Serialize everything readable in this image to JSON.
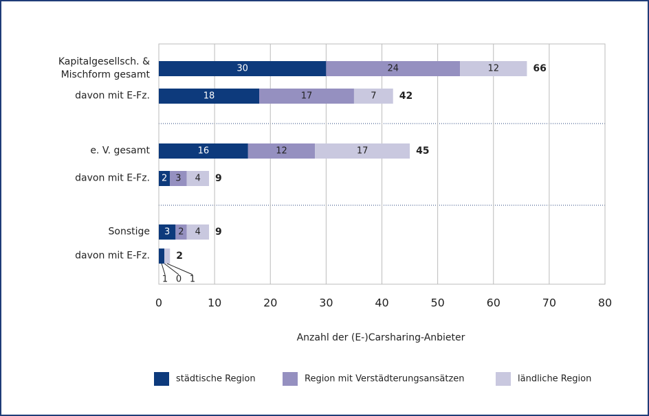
{
  "chart_data": {
    "type": "stacked-bar-horizontal",
    "categories": [
      "Kapitalgesellsch. &\nMischform gesamt",
      "davon mit E-Fz.",
      "e. V. gesamt",
      "davon mit E-Fz.",
      "Sonstige",
      "davon mit E-Fz."
    ],
    "series": [
      {
        "name": "städtische Region",
        "color": "#0d3a7c",
        "values": [
          30,
          18,
          16,
          2,
          3,
          1
        ]
      },
      {
        "name": "Region mit Verstädterungsansätzen",
        "color": "#9590c0",
        "values": [
          24,
          17,
          12,
          3,
          2,
          0
        ]
      },
      {
        "name": "ländliche Region",
        "color": "#c9c8df",
        "values": [
          12,
          7,
          17,
          4,
          4,
          1
        ]
      }
    ],
    "totals": [
      66,
      42,
      45,
      9,
      9,
      2
    ],
    "xlim": [
      0,
      80
    ],
    "xticks": [
      0,
      10,
      20,
      30,
      40,
      50,
      60,
      70,
      80
    ],
    "xlabel": "Anzahl der (E-)Carsharing-Anbieter",
    "grid": true
  }
}
